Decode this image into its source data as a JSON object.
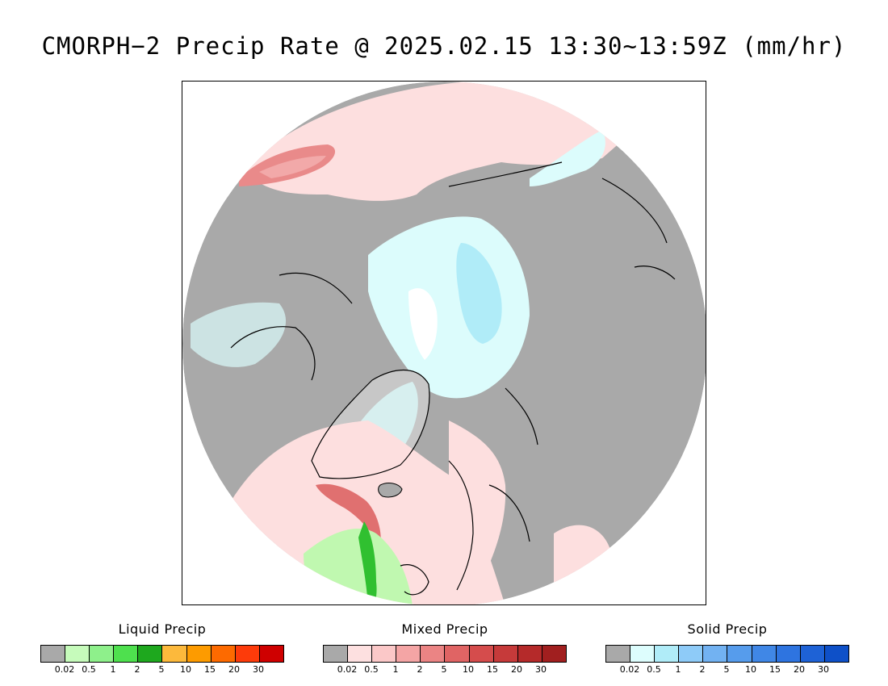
{
  "title": "CMORPH−2 Precip Rate @ 2025.02.15 13:30~13:59Z (mm/hr)",
  "map": {
    "projection": "north-polar-stereographic",
    "colors": {
      "land_no_precip": "#a9a9a9",
      "ocean_no_precip": "#ffffff",
      "mixed_light": "#fddfdf",
      "mixed_medium": "#f4a5a5",
      "mixed_heavy": "#e07070",
      "solid_light": "#dcfcfc",
      "solid_medium": "#b0ecf8",
      "liquid_light": "#c0f8b0",
      "liquid_medium": "#60e060",
      "liquid_heavy": "#20b020",
      "coastline": "#000000"
    }
  },
  "legends": [
    {
      "title": "Liquid Precip",
      "colors": [
        "#a9a9a9",
        "#c6fbbb",
        "#8ef08b",
        "#4ee04e",
        "#1ea81e",
        "#fcb93c",
        "#fd9b00",
        "#fd6a00",
        "#fd3b0a",
        "#cf0000"
      ],
      "ticks": [
        "0.02",
        "0.5",
        "1",
        "2",
        "5",
        "10",
        "15",
        "20",
        "30"
      ]
    },
    {
      "title": "Mixed Precip",
      "colors": [
        "#a9a9a9",
        "#fde0e0",
        "#fbc8c8",
        "#f4a5a5",
        "#eb8484",
        "#e06464",
        "#d54c4c",
        "#c63a3a",
        "#b52a2a",
        "#a11f1f"
      ],
      "ticks": [
        "0.02",
        "0.5",
        "1",
        "2",
        "5",
        "10",
        "15",
        "20",
        "30"
      ]
    },
    {
      "title": "Solid Precip",
      "colors": [
        "#a9a9a9",
        "#ddfdfd",
        "#b0ecf8",
        "#8ecbf8",
        "#72b2f2",
        "#569cec",
        "#4087e6",
        "#2e74e0",
        "#1e62d6",
        "#0e50c8"
      ],
      "ticks": [
        "0.02",
        "0.5",
        "1",
        "2",
        "5",
        "10",
        "15",
        "20",
        "30"
      ]
    }
  ]
}
